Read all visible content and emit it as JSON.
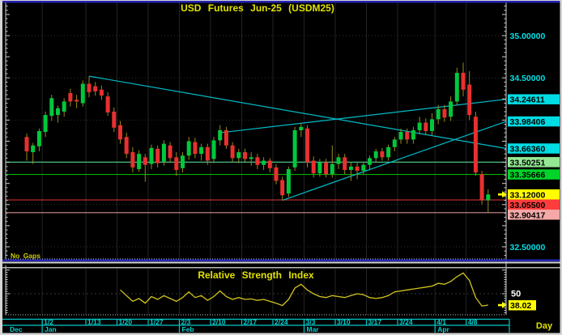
{
  "title": "USD Futures Jun-25 (USDM25)",
  "no_gaps": "No Gaps",
  "timeframe": "Day",
  "rsi": {
    "title": "Relative Strength Index",
    "level_label": "50",
    "last_value": "38.02"
  },
  "colors": {
    "bg": "#000000",
    "up": "#00c83c",
    "down": "#e83030",
    "wick": "#9a8820",
    "trendline": "#00bcc8",
    "grid": "#232323",
    "grid_h": "#2e2e2e",
    "spine": "#d0d0d0",
    "axis_cyan": "#00c8c8",
    "label_cyan": "#00e0e6",
    "rsi_line": "#d2c41e",
    "yellow": "#ffff00",
    "chrome_blue": "#2424b4",
    "chrome_white": "#d4d4d4"
  },
  "chart_data": {
    "type": "candlestick",
    "symbol": "USD Futures Jun-25 (USDM25)",
    "price_range_visible": [
      32.36,
      35.38
    ],
    "grid_prices": [
      35.0,
      34.5,
      34.0,
      33.5,
      33.0,
      32.5
    ],
    "y_axis_labels": [
      {
        "text": "35.00000",
        "price": 35.0,
        "style": "plain"
      },
      {
        "text": "34.50000",
        "price": 34.5,
        "style": "plain"
      },
      {
        "text": "34.24611",
        "price": 34.24611,
        "style": "box",
        "bg": "#00dce4"
      },
      {
        "text": "33.98406",
        "price": 33.98406,
        "style": "box",
        "bg": "#00dce4"
      },
      {
        "text": "33.66360",
        "price": 33.6636,
        "style": "box",
        "bg": "#00dce4"
      },
      {
        "text": "33.50251",
        "price": 33.50251,
        "style": "box",
        "bg": "#94e894"
      },
      {
        "text": "33.35666",
        "price": 33.35666,
        "style": "box",
        "bg": "#00d42a"
      },
      {
        "text": "33.12000",
        "price": 33.12,
        "style": "box",
        "bg": "#ffff00",
        "arrow": true
      },
      {
        "text": "33.05500",
        "price": 33.055,
        "style": "box",
        "bg": "#ff3c3c"
      },
      {
        "text": "32.90417",
        "price": 32.90417,
        "style": "box",
        "bg": "#f4a8a8"
      },
      {
        "text": "32.50000",
        "price": 32.5,
        "style": "plain"
      }
    ],
    "horizontal_lines": [
      {
        "price": 33.50251,
        "color": "#4cbf82"
      },
      {
        "price": 33.35666,
        "color": "#00b400"
      },
      {
        "price": 33.055,
        "color": "#c83232"
      },
      {
        "price": 32.90417,
        "color": "#d29090"
      }
    ],
    "trendlines": [
      {
        "from_index": 10,
        "from_price": 34.52,
        "to_price": 33.6636
      },
      {
        "from_index": 31,
        "from_price": 33.85,
        "to_price": 34.24611
      },
      {
        "from_index": 41,
        "from_price": 33.05,
        "to_price": 33.98406
      }
    ],
    "last_price": 33.12,
    "candles": [
      [
        "12/27",
        33.8,
        33.84,
        33.52,
        33.63
      ],
      [
        "12/30",
        33.62,
        33.73,
        33.48,
        33.7
      ],
      [
        "12/31",
        33.69,
        33.9,
        33.63,
        33.87
      ],
      [
        "1/2",
        33.86,
        34.1,
        33.8,
        34.06
      ],
      [
        "1/3",
        34.05,
        34.3,
        33.99,
        34.26
      ],
      [
        "1/6",
        34.06,
        34.17,
        33.97,
        34.14
      ],
      [
        "1/7",
        34.1,
        34.26,
        34.04,
        34.22
      ],
      [
        "1/8",
        34.32,
        34.37,
        34.16,
        34.22
      ],
      [
        "1/9",
        34.24,
        34.3,
        34.14,
        34.22
      ],
      [
        "1/10",
        34.2,
        34.47,
        34.16,
        34.43
      ],
      [
        "1/13",
        34.43,
        34.52,
        34.27,
        34.33
      ],
      [
        "1/14",
        34.4,
        34.45,
        34.29,
        34.34
      ],
      [
        "1/15",
        34.36,
        34.41,
        34.24,
        34.29
      ],
      [
        "1/16",
        34.28,
        34.33,
        34.05,
        34.09
      ],
      [
        "1/17",
        34.1,
        34.15,
        33.86,
        33.91
      ],
      [
        "1/20",
        33.94,
        33.99,
        33.72,
        33.77
      ],
      [
        "1/21",
        33.8,
        33.85,
        33.55,
        33.6
      ],
      [
        "1/22",
        33.62,
        33.68,
        33.38,
        33.44
      ],
      [
        "1/23",
        33.42,
        33.64,
        33.39,
        33.6
      ],
      [
        "1/24",
        33.56,
        33.6,
        33.27,
        33.47
      ],
      [
        "1/27",
        33.48,
        33.71,
        33.42,
        33.67
      ],
      [
        "1/28",
        33.66,
        33.7,
        33.44,
        33.49
      ],
      [
        "1/29",
        33.51,
        33.76,
        33.46,
        33.72
      ],
      [
        "1/30",
        33.7,
        33.74,
        33.5,
        33.55
      ],
      [
        "1/31",
        33.56,
        33.62,
        33.34,
        33.41
      ],
      [
        "2/3",
        33.43,
        33.62,
        33.38,
        33.58
      ],
      [
        "2/4",
        33.58,
        33.8,
        33.53,
        33.75
      ],
      [
        "2/5",
        33.74,
        33.79,
        33.55,
        33.6
      ],
      [
        "2/6",
        33.6,
        33.72,
        33.52,
        33.68
      ],
      [
        "2/7",
        33.68,
        33.72,
        33.47,
        33.52
      ],
      [
        "2/10",
        33.54,
        33.8,
        33.49,
        33.76
      ],
      [
        "2/11",
        33.76,
        33.94,
        33.7,
        33.88
      ],
      [
        "2/12",
        33.88,
        33.92,
        33.66,
        33.7
      ],
      [
        "2/13",
        33.7,
        33.74,
        33.5,
        33.55
      ],
      [
        "2/14",
        33.55,
        33.66,
        33.49,
        33.62
      ],
      [
        "2/17",
        33.62,
        33.66,
        33.5,
        33.54
      ],
      [
        "2/18",
        33.54,
        33.62,
        33.46,
        33.56
      ],
      [
        "2/19",
        33.56,
        33.6,
        33.42,
        33.47
      ],
      [
        "2/20",
        33.47,
        33.56,
        33.41,
        33.52
      ],
      [
        "2/21",
        33.52,
        33.55,
        33.38,
        33.43
      ],
      [
        "2/24",
        33.44,
        33.48,
        33.24,
        33.28
      ],
      [
        "2/25",
        33.29,
        33.33,
        33.05,
        33.11
      ],
      [
        "2/26",
        33.13,
        33.45,
        33.09,
        33.42
      ],
      [
        "2/27",
        33.44,
        33.92,
        33.4,
        33.88
      ],
      [
        "2/28",
        33.88,
        33.97,
        33.8,
        33.92
      ],
      [
        "3/3",
        33.9,
        33.94,
        33.44,
        33.5
      ],
      [
        "3/4",
        33.52,
        33.57,
        33.32,
        33.37
      ],
      [
        "3/5",
        33.37,
        33.54,
        33.33,
        33.5
      ],
      [
        "3/6",
        33.5,
        33.54,
        33.32,
        33.36
      ],
      [
        "3/7",
        33.36,
        33.7,
        33.32,
        33.48
      ],
      [
        "3/10",
        33.48,
        33.6,
        33.42,
        33.56
      ],
      [
        "3/11",
        33.56,
        33.6,
        33.36,
        33.41
      ],
      [
        "3/12",
        33.41,
        33.5,
        33.28,
        33.45
      ],
      [
        "3/13",
        33.45,
        33.5,
        33.3,
        33.4
      ],
      [
        "3/14",
        33.4,
        33.5,
        33.35,
        33.47
      ],
      [
        "3/17",
        33.47,
        33.58,
        33.42,
        33.55
      ],
      [
        "3/18",
        33.55,
        33.66,
        33.5,
        33.63
      ],
      [
        "3/19",
        33.63,
        33.67,
        33.52,
        33.56
      ],
      [
        "3/20",
        33.56,
        33.71,
        33.52,
        33.68
      ],
      [
        "3/21",
        33.68,
        33.8,
        33.63,
        33.77
      ],
      [
        "3/24",
        33.77,
        33.9,
        33.72,
        33.86
      ],
      [
        "3/25",
        33.86,
        33.9,
        33.72,
        33.77
      ],
      [
        "3/26",
        33.77,
        33.92,
        33.72,
        33.88
      ],
      [
        "3/27",
        33.88,
        34.04,
        33.83,
        33.97
      ],
      [
        "3/28",
        33.97,
        34.02,
        33.82,
        33.87
      ],
      [
        "3/31",
        33.87,
        34.08,
        33.82,
        34.01
      ],
      [
        "4/1",
        34.01,
        34.18,
        33.95,
        34.13
      ],
      [
        "4/2",
        34.13,
        34.18,
        33.98,
        34.03
      ],
      [
        "4/3",
        34.04,
        34.28,
        33.99,
        34.22
      ],
      [
        "4/4",
        34.22,
        34.62,
        34.17,
        34.56
      ],
      [
        "4/7",
        34.56,
        34.68,
        34.28,
        34.36
      ],
      [
        "4/8",
        34.42,
        34.58,
        34.0,
        34.06
      ],
      [
        "4/9",
        34.04,
        34.1,
        33.34,
        33.38
      ],
      [
        "4/10",
        33.36,
        33.4,
        33.0,
        33.05
      ],
      [
        "4/11",
        33.05,
        33.18,
        32.9,
        33.12
      ]
    ],
    "x_ticks": [
      {
        "label": "1/2",
        "index": 3
      },
      {
        "label": "1/13",
        "index": 10
      },
      {
        "label": "1/20",
        "index": 15
      },
      {
        "label": "1/27",
        "index": 20
      },
      {
        "label": "2/3",
        "index": 25
      },
      {
        "label": "2/10",
        "index": 30
      },
      {
        "label": "2/17",
        "index": 35
      },
      {
        "label": "2/24",
        "index": 40
      },
      {
        "label": "3/3",
        "index": 45
      },
      {
        "label": "3/10",
        "index": 50
      },
      {
        "label": "3/17",
        "index": 55
      },
      {
        "label": "3/24",
        "index": 60
      },
      {
        "label": "4/1",
        "index": 66
      },
      {
        "label": "4/8",
        "index": 71
      }
    ],
    "months": [
      {
        "label": "Dec",
        "index": null
      },
      {
        "label": "Jan",
        "index": 3
      },
      {
        "label": "Feb",
        "index": 25
      },
      {
        "label": "Mar",
        "index": 45
      },
      {
        "label": "Apr",
        "index": 66
      }
    ],
    "rsi": {
      "title": "Relative Strength Index",
      "midline": 50,
      "start_index": 15,
      "last_value": 38.02,
      "values": [
        54,
        48,
        42,
        45,
        40,
        47,
        44,
        48,
        45,
        42,
        46,
        52,
        46,
        48,
        43,
        47,
        53,
        47,
        44,
        46,
        44,
        44.5,
        43,
        44,
        42,
        40,
        37.5,
        44,
        56,
        60,
        54,
        50,
        47,
        46,
        48,
        47,
        46,
        48,
        50,
        49,
        46,
        45,
        46,
        48,
        52,
        53,
        54,
        55,
        56,
        57,
        58,
        61,
        60,
        63,
        68,
        72,
        64,
        46,
        37,
        38.02
      ]
    }
  }
}
